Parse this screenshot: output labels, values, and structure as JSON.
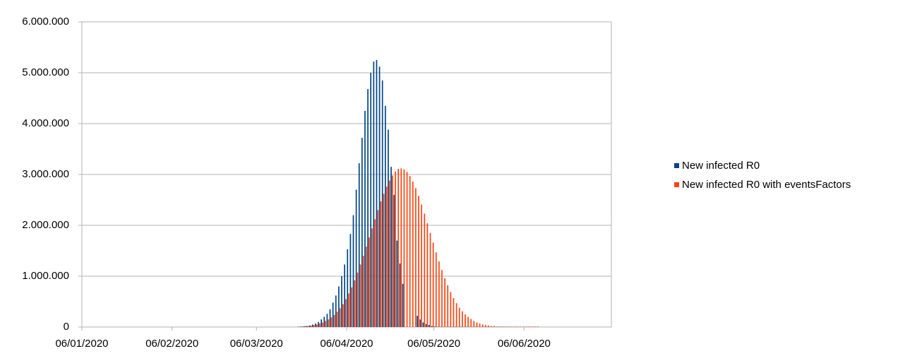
{
  "chart_data": {
    "type": "bar",
    "x": [
      "2020-03-20",
      "2020-03-21",
      "2020-03-22",
      "2020-03-23",
      "2020-03-24",
      "2020-03-25",
      "2020-03-26",
      "2020-03-27",
      "2020-03-28",
      "2020-03-29",
      "2020-03-30",
      "2020-03-31",
      "2020-04-01",
      "2020-04-02",
      "2020-04-03",
      "2020-04-04",
      "2020-04-05",
      "2020-04-06",
      "2020-04-07",
      "2020-04-08",
      "2020-04-09",
      "2020-04-10",
      "2020-04-11",
      "2020-04-12",
      "2020-04-13",
      "2020-04-14",
      "2020-04-15",
      "2020-04-16",
      "2020-04-17",
      "2020-04-18",
      "2020-04-19",
      "2020-04-20",
      "2020-04-21",
      "2020-04-22",
      "2020-04-23",
      "2020-04-24",
      "2020-04-25",
      "2020-04-26",
      "2020-04-27",
      "2020-04-28",
      "2020-04-29",
      "2020-04-30",
      "2020-05-01",
      "2020-05-02",
      "2020-05-03",
      "2020-05-04",
      "2020-05-05",
      "2020-05-06",
      "2020-05-07",
      "2020-05-08",
      "2020-05-09",
      "2020-05-10",
      "2020-05-11",
      "2020-05-12",
      "2020-05-13",
      "2020-05-14",
      "2020-05-15",
      "2020-05-16",
      "2020-05-17",
      "2020-05-18",
      "2020-05-19",
      "2020-05-20",
      "2020-05-21",
      "2020-05-22",
      "2020-05-23",
      "2020-05-24",
      "2020-05-25",
      "2020-05-26",
      "2020-05-27",
      "2020-05-28",
      "2020-05-29",
      "2020-05-30",
      "2020-05-31",
      "2020-06-01",
      "2020-06-02",
      "2020-06-03",
      "2020-06-04",
      "2020-06-05",
      "2020-06-06",
      "2020-06-07",
      "2020-06-08",
      "2020-06-09",
      "2020-06-10"
    ],
    "series": [
      {
        "name": "New infected R0",
        "color": "#004586",
        "values": [
          5000,
          10000,
          15000,
          20000,
          30000,
          50000,
          70000,
          100000,
          150000,
          200000,
          260000,
          350000,
          480000,
          620000,
          800000,
          1000000,
          1230000,
          1530000,
          1830000,
          2200000,
          2700000,
          3220000,
          3720000,
          4250000,
          4680000,
          5000000,
          5220000,
          5250000,
          5120000,
          4850000,
          4350000,
          3880000,
          3150000,
          2600000,
          1700000,
          1250000,
          850000,
          0,
          0,
          0,
          0,
          220000,
          150000,
          90000,
          60000,
          40000,
          20000,
          10000,
          5000,
          5000,
          5000,
          5000,
          5000,
          5000,
          5000,
          5000,
          5000,
          5000,
          5000,
          5000,
          5000,
          5000,
          5000,
          5000,
          5000,
          5000,
          5000,
          5000,
          5000,
          5000,
          5000,
          5000,
          5000,
          3000,
          3000,
          3000,
          3000,
          3000,
          3000,
          3000,
          3000,
          3000,
          3000
        ]
      },
      {
        "name": "New infected R0 with eventsFactors",
        "color": "#ff420e",
        "values": [
          10000,
          10000,
          20000,
          20000,
          30000,
          40000,
          50000,
          70000,
          90000,
          120000,
          150000,
          190000,
          240000,
          300000,
          370000,
          450000,
          550000,
          660000,
          780000,
          920000,
          1070000,
          1230000,
          1400000,
          1580000,
          1760000,
          1940000,
          2120000,
          2300000,
          2470000,
          2620000,
          2760000,
          2880000,
          2980000,
          3060000,
          3110000,
          3120000,
          3100000,
          3050000,
          2970000,
          2860000,
          2730000,
          2580000,
          2410000,
          2230000,
          2040000,
          1850000,
          1660000,
          1470000,
          1290000,
          1120000,
          960000,
          820000,
          690000,
          570000,
          470000,
          380000,
          310000,
          250000,
          200000,
          160000,
          120000,
          90000,
          70000,
          50000,
          40000,
          30000,
          20000,
          20000,
          10000,
          10000,
          10000,
          10000,
          10000,
          10000,
          10000,
          10000,
          10000,
          10000,
          10000,
          10000,
          10000,
          10000,
          10000
        ]
      }
    ],
    "xlim": [
      "2020-01-06",
      "2020-07-06"
    ],
    "xticks": [
      {
        "value": "2020-01-06",
        "label": "06/01/2020"
      },
      {
        "value": "2020-02-06",
        "label": "06/02/2020"
      },
      {
        "value": "2020-03-06",
        "label": "06/03/2020"
      },
      {
        "value": "2020-04-06",
        "label": "06/04/2020"
      },
      {
        "value": "2020-05-06",
        "label": "06/05/2020"
      },
      {
        "value": "2020-06-06",
        "label": "06/06/2020"
      }
    ],
    "ylim": [
      0,
      6000000
    ],
    "yticks": [
      0,
      {
        "value": 1000000,
        "label": "1.000.000"
      },
      {
        "value": 2000000,
        "label": "2.000.000"
      },
      {
        "value": 3000000,
        "label": "3.000.000"
      },
      {
        "value": 4000000,
        "label": "4.000.000"
      },
      {
        "value": 5000000,
        "label": "5.000.000"
      },
      {
        "value": 6000000,
        "label": "6.000.000"
      }
    ],
    "grid": true,
    "legend": "right"
  }
}
